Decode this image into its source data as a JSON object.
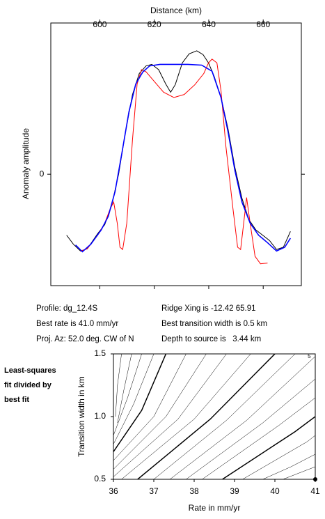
{
  "chart_data": [
    {
      "type": "line",
      "xlabel": "Distance (km)",
      "ylabel": "Anomaly amplitude",
      "xlim": [
        582,
        674
      ],
      "xticks": [
        600,
        620,
        640,
        660
      ],
      "ylim": [
        -1.48,
        2.01
      ],
      "yticks": [
        0
      ],
      "series": [
        {
          "color": "#000000",
          "x": [
            587.8,
            590.3,
            592.9,
            595.4,
            599.2,
            601.8,
            604.3,
            606.9,
            609.4,
            612.0,
            614.5,
            617.0,
            619.1,
            621.6,
            624.2,
            626.0,
            627.7,
            630.3,
            632.8,
            635.6,
            637.9,
            639.9,
            642.0,
            644.5,
            647.1,
            649.6,
            652.2,
            654.7,
            657.3,
            659.8,
            662.3,
            664.9,
            667.4,
            670.0
          ],
          "values": [
            -0.81,
            -0.93,
            -1.02,
            -0.99,
            -0.79,
            -0.67,
            -0.42,
            0,
            0.56,
            1.06,
            1.34,
            1.44,
            1.46,
            1.39,
            1.2,
            1.09,
            1.19,
            1.48,
            1.6,
            1.64,
            1.59,
            1.48,
            1.3,
            1.02,
            0.6,
            0.09,
            -0.32,
            -0.6,
            -0.74,
            -0.81,
            -0.88,
            -1.0,
            -0.97,
            -0.76
          ]
        },
        {
          "color": "#ff0000",
          "x": [
            592.9,
            595.4,
            599.2,
            601.8,
            603.8,
            605.1,
            606.4,
            607.4,
            608.4,
            609.9,
            612.0,
            613.7,
            615.3,
            617.0,
            619.6,
            623.4,
            627.2,
            631.0,
            634.9,
            638.2,
            639.9,
            641.2,
            643.0,
            644.5,
            646.3,
            648.9,
            650.6,
            651.7,
            652.7,
            653.9,
            655.2,
            657.0,
            659.0,
            661.6
          ],
          "values": [
            -1.02,
            -0.99,
            -0.81,
            -0.65,
            -0.46,
            -0.37,
            -0.65,
            -0.97,
            -1.0,
            -0.65,
            0.46,
            1.2,
            1.39,
            1.36,
            1.25,
            1.09,
            1.02,
            1.06,
            1.19,
            1.34,
            1.48,
            1.53,
            1.48,
            1.11,
            0.37,
            -0.46,
            -0.97,
            -1.0,
            -0.69,
            -0.31,
            -0.65,
            -1.09,
            -1.19,
            -1.18
          ]
        },
        {
          "color": "#0000ff",
          "x": [
            591.1,
            593.6,
            596.7,
            600.5,
            603.1,
            605.6,
            608.1,
            610.7,
            613.2,
            615.8,
            618.3,
            622.1,
            627.2,
            632.3,
            637.4,
            641.2,
            644.5,
            647.1,
            649.6,
            652.2,
            655.2,
            658.3,
            661.6,
            664.9,
            667.9,
            670.0
          ],
          "values": [
            -0.94,
            -1.03,
            -0.93,
            -0.74,
            -0.56,
            -0.23,
            0.28,
            0.83,
            1.2,
            1.36,
            1.44,
            1.46,
            1.46,
            1.46,
            1.45,
            1.37,
            1.02,
            0.56,
            0.05,
            -0.37,
            -0.65,
            -0.81,
            -0.91,
            -1.02,
            -0.97,
            -0.85
          ]
        }
      ],
      "info": [
        "Profile: dg_12.4S",
        "Best rate is 41.0 mm/yr",
        "Proj. Az: 52.0 deg. CW of N",
        "Ridge Xing is -12.42 65.91",
        "Best transition width is 0.5 km",
        "Depth to source is   3.44 km"
      ]
    },
    {
      "type": "contour",
      "xlabel": "Rate in mm/yr",
      "ylabel": "Transition width in km",
      "side_note": [
        "Least-squares",
        "fit divided by",
        "best fit"
      ],
      "xlim": [
        36,
        41
      ],
      "xticks": [
        36,
        37,
        38,
        39,
        40,
        41
      ],
      "ylim": [
        0.5,
        1.5
      ],
      "yticks": [
        {
          "value": 0.5,
          "label": "0.5"
        },
        {
          "value": 1.0,
          "label": "1.0"
        },
        {
          "value": 1.5,
          "label": "1.5"
        }
      ],
      "contours": [
        {
          "x": [
            36.05,
            36.1,
            36.2
          ],
          "y": [
            1.0,
            1.25,
            1.5
          ]
        },
        {
          "x": [
            36.1,
            36.25,
            36.45
          ],
          "y": [
            0.95,
            1.2,
            1.5
          ]
        },
        {
          "x": [
            36.0,
            36.35,
            36.7
          ],
          "y": [
            0.85,
            1.15,
            1.5
          ]
        },
        {
          "x": [
            36.0,
            36.5,
            37.0
          ],
          "y": [
            0.78,
            1.1,
            1.5
          ]
        },
        {
          "x": [
            36.0,
            36.7,
            37.3
          ],
          "y": [
            0.72,
            1.05,
            1.5
          ],
          "heavy": true
        },
        {
          "x": [
            36.0,
            37.0,
            37.8
          ],
          "y": [
            0.65,
            1.0,
            1.5
          ]
        },
        {
          "x": [
            36.0,
            37.3,
            38.3
          ],
          "y": [
            0.58,
            1.0,
            1.5
          ]
        },
        {
          "x": [
            36.0,
            37.6,
            38.8
          ],
          "y": [
            0.52,
            0.98,
            1.5
          ]
        },
        {
          "x": [
            36.2,
            38.0,
            39.4
          ],
          "y": [
            0.5,
            0.98,
            1.5
          ]
        },
        {
          "x": [
            36.6,
            38.4,
            40.0
          ],
          "y": [
            0.5,
            0.98,
            1.5
          ],
          "heavy": true
        },
        {
          "x": [
            37.0,
            38.8,
            40.5
          ],
          "y": [
            0.5,
            0.97,
            1.5
          ]
        },
        {
          "x": [
            37.4,
            39.3,
            41.0
          ],
          "y": [
            0.5,
            0.97,
            1.48
          ]
        },
        {
          "x": [
            37.8,
            39.7,
            41.0
          ],
          "y": [
            0.5,
            0.95,
            1.3
          ]
        },
        {
          "x": [
            38.2,
            40.1,
            41.0
          ],
          "y": [
            0.5,
            0.93,
            1.15
          ]
        },
        {
          "x": [
            38.7,
            40.5,
            41.0
          ],
          "y": [
            0.5,
            0.88,
            1.0
          ],
          "heavy": true
        },
        {
          "x": [
            39.2,
            40.8,
            41.0
          ],
          "y": [
            0.5,
            0.8,
            0.85
          ]
        },
        {
          "x": [
            39.7,
            40.4,
            41.0
          ],
          "y": [
            0.5,
            0.6,
            0.7
          ]
        },
        {
          "x": [
            40.2,
            40.6,
            41.0
          ],
          "y": [
            0.5,
            0.55,
            0.6
          ]
        }
      ],
      "annotations": [
        {
          "text": "5",
          "x": 40.85,
          "y": 1.49
        }
      ],
      "best_fit": {
        "x": 41.0,
        "y": 0.5,
        "color": "#000000"
      }
    }
  ]
}
